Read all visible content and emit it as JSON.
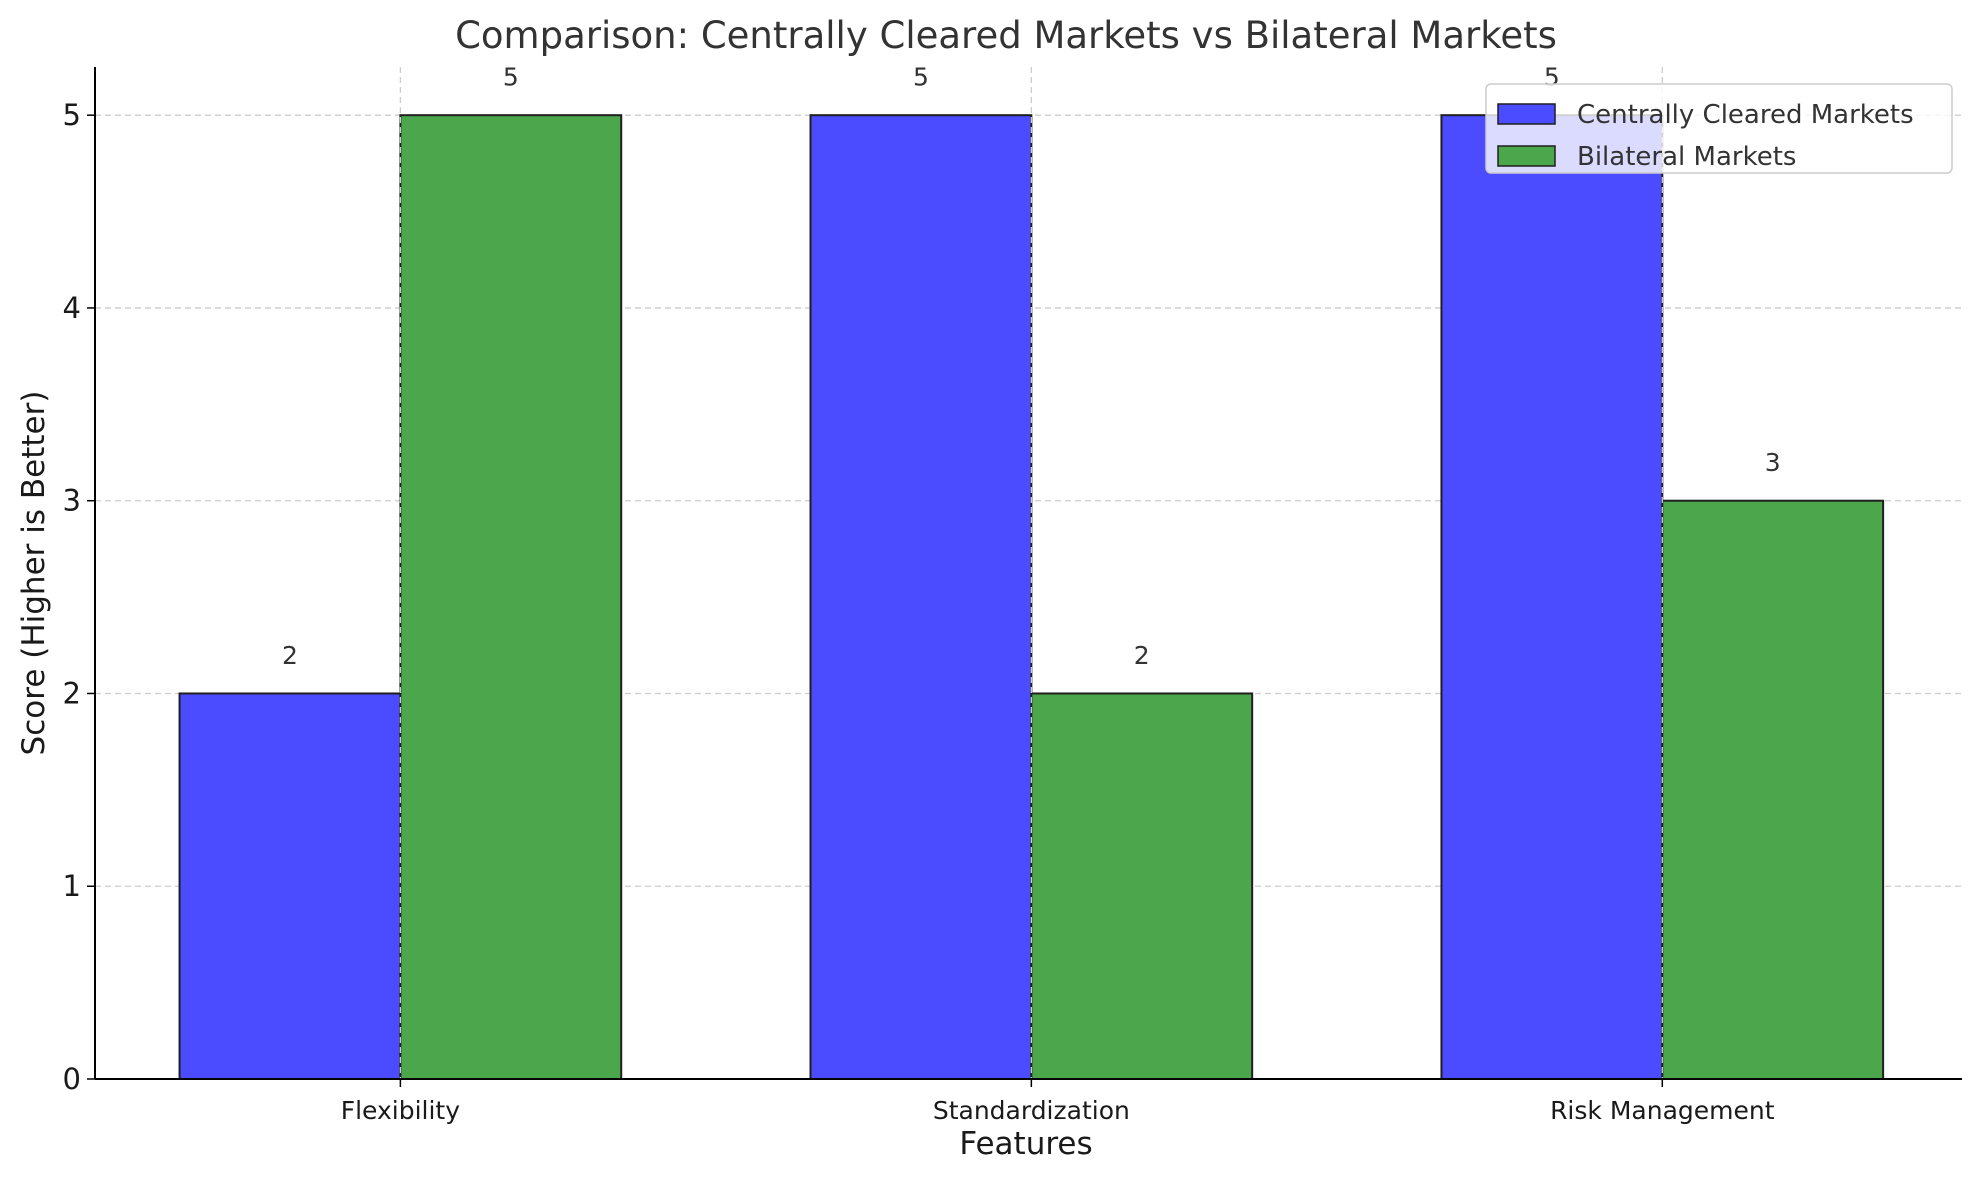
{
  "chart_data": {
    "type": "bar",
    "title": "Comparison: Centrally Cleared Markets vs Bilateral Markets",
    "xlabel": "Features",
    "ylabel": "Score (Higher is Better)",
    "categories": [
      "Flexibility",
      "Standardization",
      "Risk Management"
    ],
    "series": [
      {
        "name": "Centrally Cleared Markets",
        "values": [
          2,
          5,
          5
        ],
        "color": "#4b4bff"
      },
      {
        "name": "Bilateral Markets",
        "values": [
          5,
          2,
          3
        ],
        "color": "#4ca64c"
      }
    ],
    "ylim": [
      0,
      5.25
    ],
    "yticks": [
      0,
      1,
      2,
      3,
      4,
      5
    ],
    "grid": true,
    "legend_position": "top-right",
    "data_labels": true
  }
}
